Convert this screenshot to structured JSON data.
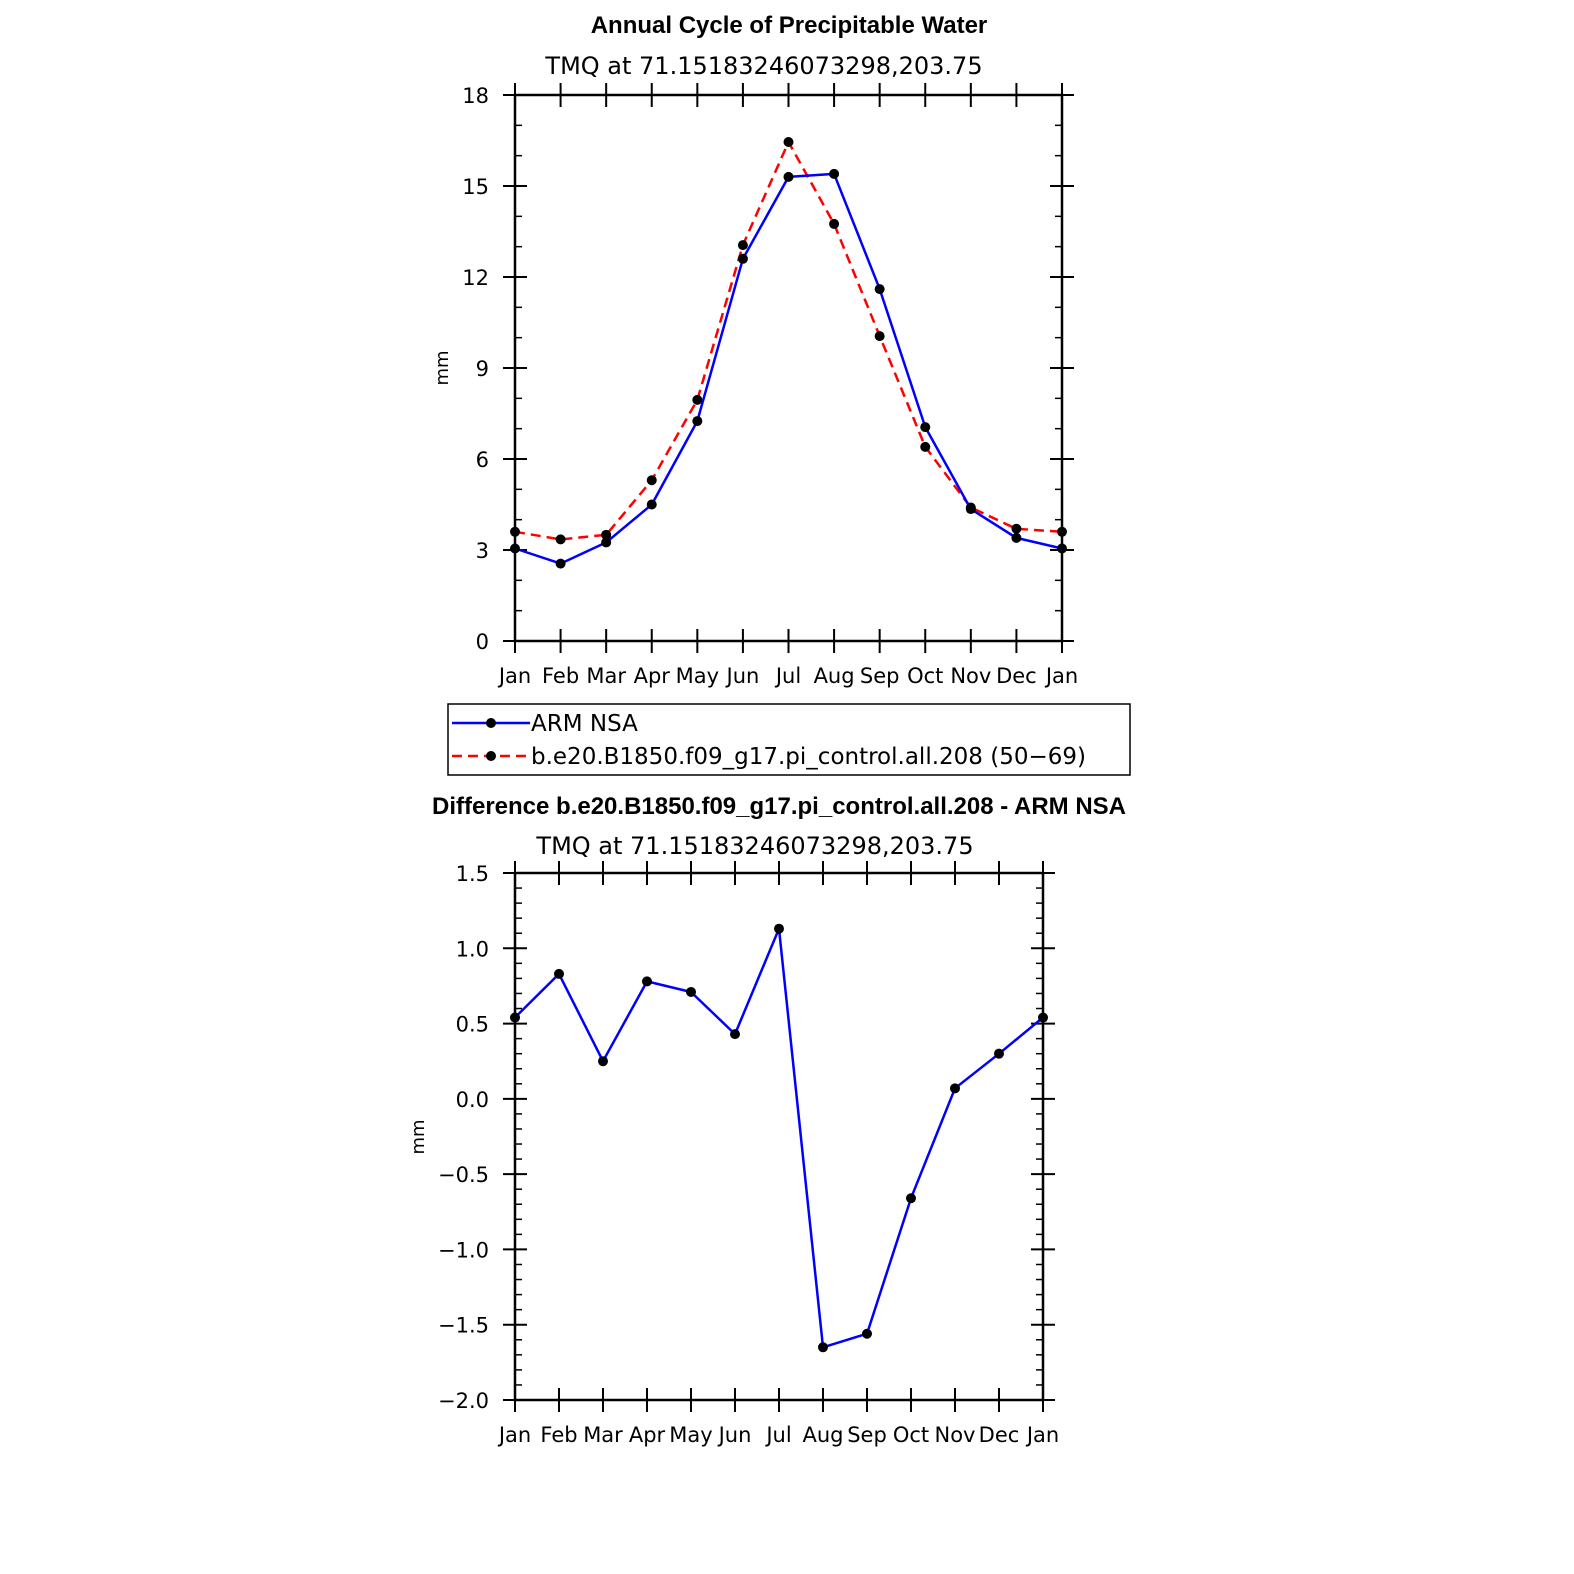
{
  "chart_data": [
    {
      "type": "line",
      "title": "Annual Cycle of Precipitable Water",
      "subtitle": "TMQ at 71.15183246073298,203.75",
      "xlabel": "",
      "ylabel": "mm",
      "categories": [
        "Jan",
        "Feb",
        "Mar",
        "Apr",
        "May",
        "Jun",
        "Jul",
        "Aug",
        "Sep",
        "Oct",
        "Nov",
        "Dec",
        "Jan"
      ],
      "yticks": [
        "0",
        "3",
        "6",
        "9",
        "12",
        "15",
        "18"
      ],
      "ylim": [
        0,
        18
      ],
      "series": [
        {
          "name": "ARM NSA",
          "color": "#0000ff",
          "dash": "solid",
          "values": [
            3.05,
            2.55,
            3.25,
            4.5,
            7.25,
            12.6,
            15.3,
            15.4,
            11.6,
            7.05,
            4.35,
            3.4,
            3.05
          ]
        },
        {
          "name": "b.e20.B1850.f09_g17.pi_control.all.208 (50−69)",
          "color": "#ff0000",
          "dash": "dashed",
          "values": [
            3.6,
            3.35,
            3.5,
            5.3,
            7.95,
            13.05,
            16.45,
            13.75,
            10.05,
            6.4,
            4.4,
            3.7,
            3.6
          ]
        }
      ],
      "legend": "below"
    },
    {
      "type": "line",
      "title": "Difference b.e20.B1850.f09_g17.pi_control.all.208 - ARM NSA",
      "subtitle": "TMQ at 71.15183246073298,203.75",
      "xlabel": "",
      "ylabel": "mm",
      "categories": [
        "Jan",
        "Feb",
        "Mar",
        "Apr",
        "May",
        "Jun",
        "Jul",
        "Aug",
        "Sep",
        "Oct",
        "Nov",
        "Dec",
        "Jan"
      ],
      "yticks": [
        "−2.0",
        "−1.5",
        "−1.0",
        "−0.5",
        "0.0",
        "0.5",
        "1.0",
        "1.5"
      ],
      "ylim": [
        -2.0,
        1.5
      ],
      "series": [
        {
          "color": "#0000ff",
          "dash": "solid",
          "values": [
            0.54,
            0.83,
            0.25,
            0.78,
            0.71,
            0.43,
            1.13,
            -1.65,
            -1.56,
            -0.66,
            0.07,
            0.3,
            0.54
          ]
        }
      ]
    }
  ]
}
